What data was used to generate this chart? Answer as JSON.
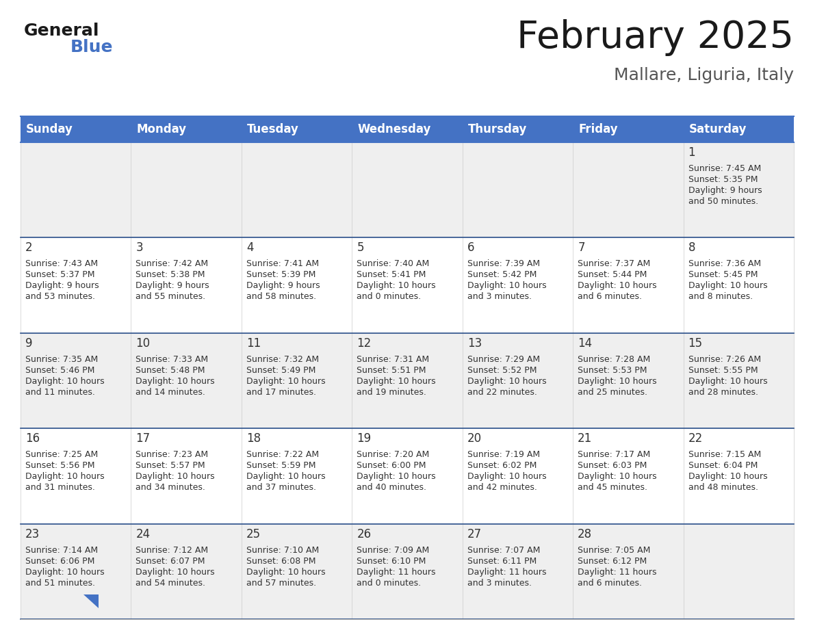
{
  "title": "February 2025",
  "subtitle": "Mallare, Liguria, Italy",
  "header_color": "#4472C4",
  "header_text_color": "#FFFFFF",
  "cell_bg_row0": "#EFEFEF",
  "cell_bg_odd": "#FFFFFF",
  "cell_bg_even": "#EFEFEF",
  "sep_color": "#4472C4",
  "text_color": "#333333",
  "day_names": [
    "Sunday",
    "Monday",
    "Tuesday",
    "Wednesday",
    "Thursday",
    "Friday",
    "Saturday"
  ],
  "days": [
    {
      "day": 1,
      "col": 6,
      "row": 0,
      "sunrise": "7:45 AM",
      "sunset": "5:35 PM",
      "daylight_h": "9 hours",
      "daylight_m": "50 minutes."
    },
    {
      "day": 2,
      "col": 0,
      "row": 1,
      "sunrise": "7:43 AM",
      "sunset": "5:37 PM",
      "daylight_h": "9 hours",
      "daylight_m": "53 minutes."
    },
    {
      "day": 3,
      "col": 1,
      "row": 1,
      "sunrise": "7:42 AM",
      "sunset": "5:38 PM",
      "daylight_h": "9 hours",
      "daylight_m": "55 minutes."
    },
    {
      "day": 4,
      "col": 2,
      "row": 1,
      "sunrise": "7:41 AM",
      "sunset": "5:39 PM",
      "daylight_h": "9 hours",
      "daylight_m": "58 minutes."
    },
    {
      "day": 5,
      "col": 3,
      "row": 1,
      "sunrise": "7:40 AM",
      "sunset": "5:41 PM",
      "daylight_h": "10 hours",
      "daylight_m": "0 minutes."
    },
    {
      "day": 6,
      "col": 4,
      "row": 1,
      "sunrise": "7:39 AM",
      "sunset": "5:42 PM",
      "daylight_h": "10 hours",
      "daylight_m": "3 minutes."
    },
    {
      "day": 7,
      "col": 5,
      "row": 1,
      "sunrise": "7:37 AM",
      "sunset": "5:44 PM",
      "daylight_h": "10 hours",
      "daylight_m": "6 minutes."
    },
    {
      "day": 8,
      "col": 6,
      "row": 1,
      "sunrise": "7:36 AM",
      "sunset": "5:45 PM",
      "daylight_h": "10 hours",
      "daylight_m": "8 minutes."
    },
    {
      "day": 9,
      "col": 0,
      "row": 2,
      "sunrise": "7:35 AM",
      "sunset": "5:46 PM",
      "daylight_h": "10 hours",
      "daylight_m": "11 minutes."
    },
    {
      "day": 10,
      "col": 1,
      "row": 2,
      "sunrise": "7:33 AM",
      "sunset": "5:48 PM",
      "daylight_h": "10 hours",
      "daylight_m": "14 minutes."
    },
    {
      "day": 11,
      "col": 2,
      "row": 2,
      "sunrise": "7:32 AM",
      "sunset": "5:49 PM",
      "daylight_h": "10 hours",
      "daylight_m": "17 minutes."
    },
    {
      "day": 12,
      "col": 3,
      "row": 2,
      "sunrise": "7:31 AM",
      "sunset": "5:51 PM",
      "daylight_h": "10 hours",
      "daylight_m": "19 minutes."
    },
    {
      "day": 13,
      "col": 4,
      "row": 2,
      "sunrise": "7:29 AM",
      "sunset": "5:52 PM",
      "daylight_h": "10 hours",
      "daylight_m": "22 minutes."
    },
    {
      "day": 14,
      "col": 5,
      "row": 2,
      "sunrise": "7:28 AM",
      "sunset": "5:53 PM",
      "daylight_h": "10 hours",
      "daylight_m": "25 minutes."
    },
    {
      "day": 15,
      "col": 6,
      "row": 2,
      "sunrise": "7:26 AM",
      "sunset": "5:55 PM",
      "daylight_h": "10 hours",
      "daylight_m": "28 minutes."
    },
    {
      "day": 16,
      "col": 0,
      "row": 3,
      "sunrise": "7:25 AM",
      "sunset": "5:56 PM",
      "daylight_h": "10 hours",
      "daylight_m": "31 minutes."
    },
    {
      "day": 17,
      "col": 1,
      "row": 3,
      "sunrise": "7:23 AM",
      "sunset": "5:57 PM",
      "daylight_h": "10 hours",
      "daylight_m": "34 minutes."
    },
    {
      "day": 18,
      "col": 2,
      "row": 3,
      "sunrise": "7:22 AM",
      "sunset": "5:59 PM",
      "daylight_h": "10 hours",
      "daylight_m": "37 minutes."
    },
    {
      "day": 19,
      "col": 3,
      "row": 3,
      "sunrise": "7:20 AM",
      "sunset": "6:00 PM",
      "daylight_h": "10 hours",
      "daylight_m": "40 minutes."
    },
    {
      "day": 20,
      "col": 4,
      "row": 3,
      "sunrise": "7:19 AM",
      "sunset": "6:02 PM",
      "daylight_h": "10 hours",
      "daylight_m": "42 minutes."
    },
    {
      "day": 21,
      "col": 5,
      "row": 3,
      "sunrise": "7:17 AM",
      "sunset": "6:03 PM",
      "daylight_h": "10 hours",
      "daylight_m": "45 minutes."
    },
    {
      "day": 22,
      "col": 6,
      "row": 3,
      "sunrise": "7:15 AM",
      "sunset": "6:04 PM",
      "daylight_h": "10 hours",
      "daylight_m": "48 minutes."
    },
    {
      "day": 23,
      "col": 0,
      "row": 4,
      "sunrise": "7:14 AM",
      "sunset": "6:06 PM",
      "daylight_h": "10 hours",
      "daylight_m": "51 minutes."
    },
    {
      "day": 24,
      "col": 1,
      "row": 4,
      "sunrise": "7:12 AM",
      "sunset": "6:07 PM",
      "daylight_h": "10 hours",
      "daylight_m": "54 minutes."
    },
    {
      "day": 25,
      "col": 2,
      "row": 4,
      "sunrise": "7:10 AM",
      "sunset": "6:08 PM",
      "daylight_h": "10 hours",
      "daylight_m": "57 minutes."
    },
    {
      "day": 26,
      "col": 3,
      "row": 4,
      "sunrise": "7:09 AM",
      "sunset": "6:10 PM",
      "daylight_h": "11 hours",
      "daylight_m": "0 minutes."
    },
    {
      "day": 27,
      "col": 4,
      "row": 4,
      "sunrise": "7:07 AM",
      "sunset": "6:11 PM",
      "daylight_h": "11 hours",
      "daylight_m": "3 minutes."
    },
    {
      "day": 28,
      "col": 5,
      "row": 4,
      "sunrise": "7:05 AM",
      "sunset": "6:12 PM",
      "daylight_h": "11 hours",
      "daylight_m": "6 minutes."
    }
  ],
  "num_rows": 5,
  "num_cols": 7
}
